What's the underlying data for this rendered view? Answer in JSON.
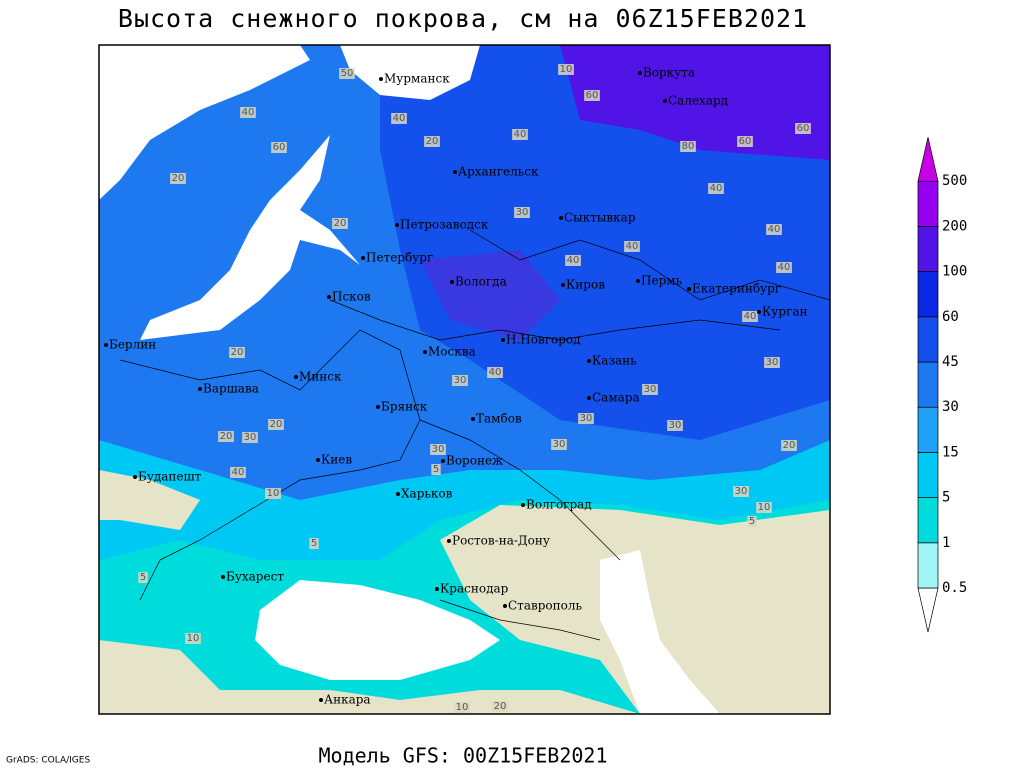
{
  "title": "Высота снежного покрова, см на 06Z15FEB2021",
  "footer": "Модель GFS: 00Z15FEB2021",
  "credit": "GrADS: COLA/IGES",
  "map": {
    "cities": [
      "Мурманск",
      "Воркута",
      "Салехард",
      "Архангельск",
      "Петрозаводск",
      "Сыктывкар",
      "Петербург",
      "Вологда",
      "Киров",
      "Пермь",
      "Екатеринбург",
      "Курган",
      "Псков",
      "Берлин",
      "Москва",
      "Н.Новгород",
      "Казань",
      "Варшава",
      "Минск",
      "Брянск",
      "Тамбов",
      "Самара",
      "Киев",
      "Воронеж",
      "Будапешт",
      "Харьков",
      "Волгоград",
      "Ростов-на-Дону",
      "Бухарест",
      "Краснодар",
      "Ставрополь",
      "Анкара"
    ],
    "contour_labels": [
      50,
      40,
      20,
      40,
      10,
      60,
      80,
      60,
      60,
      40,
      60,
      20,
      20,
      30,
      40,
      40,
      40,
      40,
      40,
      40,
      30,
      40,
      30,
      30,
      30,
      20,
      20,
      30,
      20,
      40,
      10,
      30,
      5,
      20,
      30,
      10,
      5,
      5,
      5,
      10,
      20,
      10,
      30,
      30
    ]
  },
  "legend": {
    "levels": [
      0.5,
      1,
      5,
      15,
      30,
      45,
      60,
      100,
      200,
      500
    ],
    "colors": [
      "#ffffff",
      "#a0f5f5",
      "#00dcdc",
      "#00c8f5",
      "#1ea0f5",
      "#1e78f0",
      "#1450eb",
      "#0a28e6",
      "#5014e6",
      "#9600f0",
      "#c800e6"
    ]
  }
}
